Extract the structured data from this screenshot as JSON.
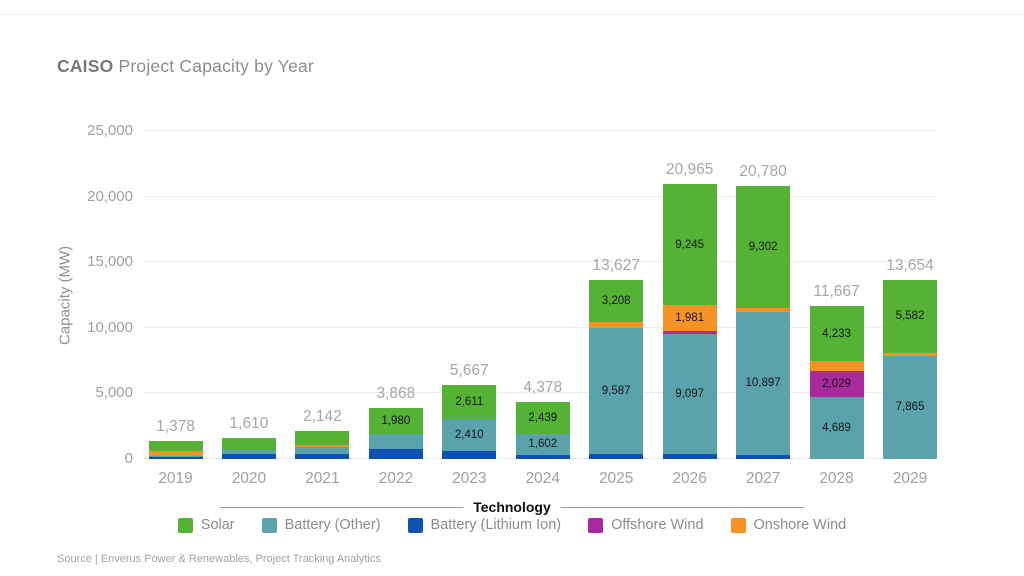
{
  "title": {
    "brand": "CAISO",
    "rest": " Project Capacity by Year"
  },
  "source": "Source | Enverus Power & Renewables, Project Tracking Analytics",
  "axes": {
    "y_label": "Capacity (MW)",
    "x_group_label": "Technology"
  },
  "legend": [
    {
      "label": "Solar",
      "color": "#54b335"
    },
    {
      "label": "Battery (Other)",
      "color": "#5ba3ac"
    },
    {
      "label": "Battery (Lithium Ion)",
      "color": "#0e51b2"
    },
    {
      "label": "Offshore Wind",
      "color": "#a92a9e"
    },
    {
      "label": "Onshore Wind",
      "color": "#f79324"
    }
  ],
  "chart_data": {
    "type": "bar",
    "stacked": true,
    "title": "CAISO Project Capacity by Year",
    "xlabel": "Technology",
    "ylabel": "Capacity (MW)",
    "ylim": [
      0,
      25000
    ],
    "yticks": [
      0,
      5000,
      10000,
      15000,
      20000,
      25000
    ],
    "ytick_labels": [
      "0",
      "5,000",
      "10,000",
      "15,000",
      "20,000",
      "25,000"
    ],
    "grid": true,
    "legend_position": "bottom",
    "categories": [
      "2019",
      "2020",
      "2021",
      "2022",
      "2023",
      "2024",
      "2025",
      "2026",
      "2027",
      "2028",
      "2029"
    ],
    "series": [
      {
        "name": "Battery (Lithium Ion)",
        "color": "#0e51b2",
        "values": [
          198,
          380,
          377,
          738,
          646,
          337,
          382,
          402,
          331,
          0,
          0
        ]
      },
      {
        "name": "Battery (Other)",
        "color": "#5ba3ac",
        "values": [
          50,
          300,
          555,
          1150,
          2410,
          1602,
          9587,
          9097,
          10897,
          4689,
          7865
        ]
      },
      {
        "name": "Offshore Wind",
        "color": "#a92a9e",
        "values": [
          0,
          0,
          0,
          0,
          0,
          0,
          0,
          240,
          0,
          2029,
          0
        ]
      },
      {
        "name": "Onshore Wind",
        "color": "#f79324",
        "values": [
          330,
          0,
          170,
          0,
          0,
          0,
          450,
          1981,
          250,
          716,
          207
        ]
      },
      {
        "name": "Solar",
        "color": "#54b335",
        "values": [
          800,
          930,
          1040,
          1980,
          2611,
          2439,
          3208,
          9245,
          9302,
          4233,
          5582
        ]
      }
    ],
    "totals": [
      1378,
      1610,
      2142,
      3868,
      5667,
      4378,
      13627,
      20965,
      20780,
      11667,
      13654
    ],
    "visible_segment_labels": [
      "1,980",
      "2,611",
      "2,410",
      "2,439",
      "1,602",
      "3,208",
      "9,587",
      "9,245",
      "1,981",
      "9,097",
      "9,302",
      "10,897",
      "4,233",
      "2,029",
      "4,689",
      "5,582",
      "7,865"
    ],
    "segment_label_min_value": 1600
  }
}
